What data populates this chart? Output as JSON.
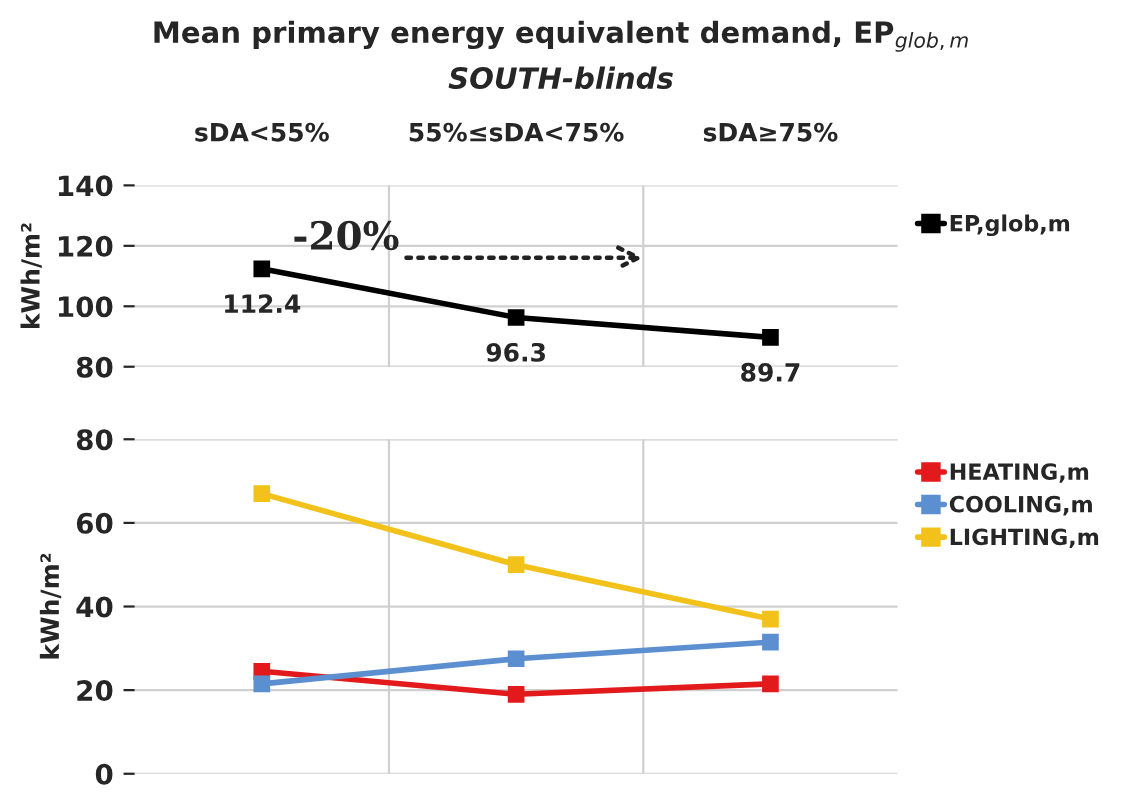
{
  "chart_data": [
    {
      "type": "line",
      "title": "Mean primary energy equivalent demand, EP$_{glob,m}$",
      "subtitle": "SOUTH-blinds",
      "ylabel": "kWh/m²",
      "categories": [
        "sDA<55%",
        "55%≤sDA<75%",
        "sDA≥75%"
      ],
      "series": [
        {
          "name": "EP,glob,m",
          "color": "#000000",
          "values": [
            112.4,
            96.3,
            89.7
          ]
        }
      ],
      "ylim": [
        80,
        140
      ],
      "yticks": [
        80,
        100,
        120,
        140
      ],
      "grid": true,
      "legend": "right",
      "marker": "square",
      "line_style": "solid",
      "data_labels": true,
      "tick_labels": "xy",
      "annotations": [
        "-20%"
      ]
    },
    {
      "type": "line",
      "ylabel": "kWh/m²",
      "categories": [
        null,
        null,
        null
      ],
      "series": [
        {
          "name": "HEATING,m",
          "color": "#e31a1c",
          "values": [
            24.5,
            19,
            21.5
          ]
        },
        {
          "name": "COOLING,m",
          "color": "#5b8fd0",
          "values": [
            21.5,
            27.5,
            31.5
          ]
        },
        {
          "name": "LIGHTING,m",
          "color": "#f2c21b",
          "values": [
            67,
            50,
            37
          ]
        }
      ],
      "ylim": [
        0,
        80
      ],
      "yticks": [
        0,
        20,
        40,
        60,
        80
      ],
      "grid": true,
      "legend": "right",
      "marker": "square",
      "line_style": "solid",
      "tick_labels": "y"
    }
  ]
}
